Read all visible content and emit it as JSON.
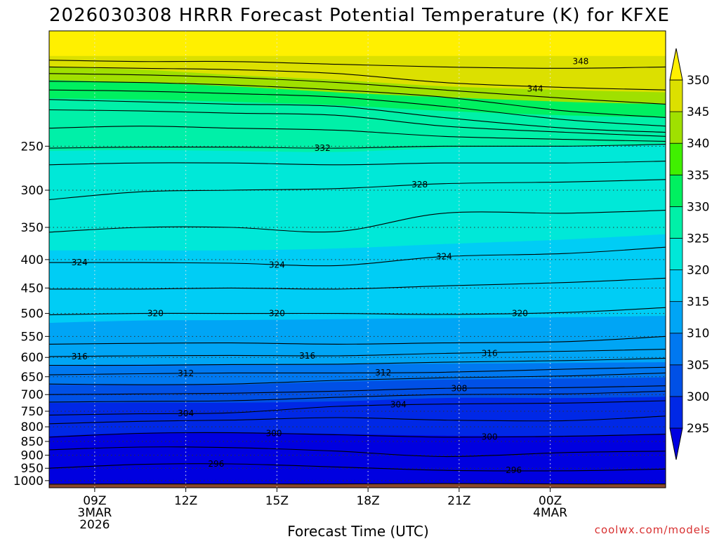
{
  "chart_data": {
    "type": "heatmap",
    "title": "2026030308 HRRR Forecast Potential Temperature (K) for KFXE",
    "xlabel": "Forecast Time (UTC)",
    "ylabel": "",
    "credit": "coolwx.com/models",
    "x_range_hours": [
      7.5,
      27.8
    ],
    "x_ticks": [
      {
        "hour": 9,
        "label": "09Z",
        "sub": [
          "3MAR",
          "2026"
        ]
      },
      {
        "hour": 12,
        "label": "12Z",
        "sub": []
      },
      {
        "hour": 15,
        "label": "15Z",
        "sub": []
      },
      {
        "hour": 18,
        "label": "18Z",
        "sub": []
      },
      {
        "hour": 21,
        "label": "21Z",
        "sub": []
      },
      {
        "hour": 24,
        "label": "00Z",
        "sub": [
          "4MAR"
        ]
      }
    ],
    "y_axis": "pressure (hPa), log scale",
    "y_range_hpa": [
      1030,
      155
    ],
    "y_ticks": [
      250,
      300,
      350,
      400,
      450,
      500,
      550,
      600,
      650,
      700,
      750,
      800,
      850,
      900,
      950,
      1000
    ],
    "colorbar": {
      "levels": [
        295,
        300,
        305,
        310,
        315,
        320,
        325,
        330,
        335,
        340,
        345,
        350
      ],
      "labels": [
        "295",
        "300",
        "305",
        "310",
        "315",
        "320",
        "325",
        "330",
        "335",
        "340",
        "345",
        "350"
      ],
      "colors": [
        "#0000e0",
        "#0028e6",
        "#0050e6",
        "#0078f0",
        "#00a5f5",
        "#00cdf5",
        "#00e8d8",
        "#00f0a8",
        "#00f060",
        "#40f000",
        "#a0e000",
        "#dce000",
        "#fff000"
      ]
    },
    "fill_bands": [
      {
        "color": "#8b4a2c",
        "pressures": [
          1030,
          1030,
          1030,
          1030,
          1030,
          1030,
          1030
        ],
        "note": "ground"
      },
      {
        "color": "#0000e0",
        "pressures": [
          1013,
          1013,
          1013,
          1013,
          1013,
          1013,
          1013
        ]
      },
      {
        "color": "#0028e6",
        "pressures": [
          832,
          820,
          818,
          824,
          830,
          830,
          823
        ]
      },
      {
        "color": "#0050e6",
        "pressures": [
          725,
          724,
          724,
          720,
          710,
          710,
          706
        ]
      },
      {
        "color": "#0078f0",
        "pressures": [
          672,
          672,
          672,
          664,
          658,
          655,
          652
        ]
      },
      {
        "color": "#00a5f5",
        "pressures": [
          620,
          618,
          617,
          617,
          616,
          614,
          612
        ]
      },
      {
        "color": "#00cdf5",
        "pressures": [
          520,
          515,
          514,
          512,
          510,
          508,
          505
        ]
      },
      {
        "color": "#00e8d8",
        "pressures": [
          385,
          385,
          385,
          382,
          375,
          368,
          360
        ]
      },
      {
        "color": "#00f0a8",
        "pressures": [
          255,
          254,
          255,
          256,
          252,
          250,
          248
        ]
      },
      {
        "color": "#00f060",
        "pressures": [
          205,
          206,
          208,
          211,
          216,
          220,
          222
        ]
      },
      {
        "color": "#a0e000",
        "pressures": [
          190,
          192,
          195,
          200,
          204,
          208,
          210
        ]
      },
      {
        "color": "#dce000",
        "pressures": [
          180,
          182,
          186,
          190,
          195,
          198,
          200
        ]
      },
      {
        "color": "#fff000",
        "pressures": [
          172,
          172,
          172,
          172,
          172,
          172,
          172
        ]
      }
    ],
    "series": [
      {
        "name": "294",
        "values": [
          1015,
          1014,
          1014,
          1014,
          1012,
          1014,
          1014
        ]
      },
      {
        "name": "296",
        "values": [
          950,
          935,
          933,
          945,
          958,
          960,
          953
        ]
      },
      {
        "name": "298",
        "values": [
          880,
          870,
          872,
          885,
          905,
          890,
          885
        ]
      },
      {
        "name": "300",
        "values": [
          835,
          822,
          820,
          827,
          835,
          832,
          825
        ]
      },
      {
        "name": "302",
        "values": [
          790,
          782,
          778,
          770,
          778,
          780,
          765
        ]
      },
      {
        "name": "304",
        "values": [
          762,
          758,
          755,
          735,
          728,
          725,
          718
        ]
      },
      {
        "name": "306",
        "values": [
          722,
          720,
          718,
          708,
          700,
          698,
          690
        ]
      },
      {
        "name": "308",
        "values": [
          700,
          698,
          696,
          690,
          682,
          680,
          675
        ]
      },
      {
        "name": "310",
        "values": [
          670,
          672,
          670,
          660,
          653,
          648,
          640
        ]
      },
      {
        "name": "312",
        "values": [
          645,
          642,
          640,
          640,
          638,
          630,
          625
        ]
      },
      {
        "name": "314",
        "values": [
          620,
          620,
          618,
          617,
          612,
          608,
          602
        ]
      },
      {
        "name": "316",
        "values": [
          598,
          596,
          595,
          596,
          590,
          585,
          580
        ]
      },
      {
        "name": "318",
        "values": [
          568,
          566,
          565,
          568,
          565,
          562,
          550
        ]
      },
      {
        "name": "320",
        "values": [
          503,
          500,
          500,
          500,
          502,
          498,
          488
        ]
      },
      {
        "name": "322",
        "values": [
          452,
          452,
          450,
          452,
          446,
          440,
          432
        ]
      },
      {
        "name": "324",
        "values": [
          405,
          405,
          406,
          410,
          395,
          390,
          380
        ]
      },
      {
        "name": "326",
        "values": [
          357,
          350,
          350,
          356,
          330,
          330,
          326
        ]
      },
      {
        "name": "328",
        "values": [
          312,
          302,
          300,
          298,
          292,
          290,
          287
        ]
      },
      {
        "name": "330",
        "values": [
          270,
          268,
          268,
          270,
          268,
          268,
          266
        ]
      },
      {
        "name": "332",
        "values": [
          252,
          251,
          251,
          252,
          250,
          250,
          248
        ]
      },
      {
        "name": "334",
        "values": [
          232,
          230,
          232,
          234,
          240,
          243,
          245
        ]
      },
      {
        "name": "336",
        "values": [
          215,
          216,
          218,
          220,
          230,
          236,
          240
        ]
      },
      {
        "name": "338",
        "values": [
          206,
          208,
          210,
          212,
          222,
          232,
          236
        ]
      },
      {
        "name": "340",
        "values": [
          198,
          199,
          201,
          204,
          212,
          224,
          230
        ]
      },
      {
        "name": "342",
        "values": [
          191,
          192,
          194,
          198,
          204,
          216,
          222
        ]
      },
      {
        "name": "344",
        "values": [
          185,
          186,
          188,
          192,
          198,
          205,
          210
        ]
      },
      {
        "name": "346",
        "values": [
          180,
          181,
          182,
          185,
          192,
          196,
          198
        ]
      },
      {
        "name": "348",
        "values": [
          175,
          176,
          176,
          178,
          180,
          181,
          180
        ]
      }
    ],
    "series_x_hours": [
      7.5,
      10.5,
      13.5,
      17,
      20.5,
      24.5,
      27.8
    ],
    "contour_labels": [
      {
        "text": "348",
        "hour": 25.0,
        "pressure": 176
      },
      {
        "text": "344",
        "hour": 23.5,
        "pressure": 197
      },
      {
        "text": "332",
        "hour": 16.5,
        "pressure": 252
      },
      {
        "text": "328",
        "hour": 19.7,
        "pressure": 293
      },
      {
        "text": "324",
        "hour": 8.5,
        "pressure": 405
      },
      {
        "text": "324",
        "hour": 15.0,
        "pressure": 409
      },
      {
        "text": "324",
        "hour": 20.5,
        "pressure": 395
      },
      {
        "text": "320",
        "hour": 11.0,
        "pressure": 500
      },
      {
        "text": "320",
        "hour": 15.0,
        "pressure": 500
      },
      {
        "text": "320",
        "hour": 23.0,
        "pressure": 500
      },
      {
        "text": "316",
        "hour": 8.5,
        "pressure": 598
      },
      {
        "text": "316",
        "hour": 16.0,
        "pressure": 596
      },
      {
        "text": "316",
        "hour": 22.0,
        "pressure": 590
      },
      {
        "text": "312",
        "hour": 12.0,
        "pressure": 641
      },
      {
        "text": "312",
        "hour": 18.5,
        "pressure": 639
      },
      {
        "text": "308",
        "hour": 21.0,
        "pressure": 682
      },
      {
        "text": "304",
        "hour": 12.0,
        "pressure": 757
      },
      {
        "text": "304",
        "hour": 19.0,
        "pressure": 730
      },
      {
        "text": "300",
        "hour": 14.9,
        "pressure": 822
      },
      {
        "text": "300",
        "hour": 22.0,
        "pressure": 834
      },
      {
        "text": "296",
        "hour": 13.0,
        "pressure": 933
      },
      {
        "text": "296",
        "hour": 22.8,
        "pressure": 958
      }
    ]
  }
}
